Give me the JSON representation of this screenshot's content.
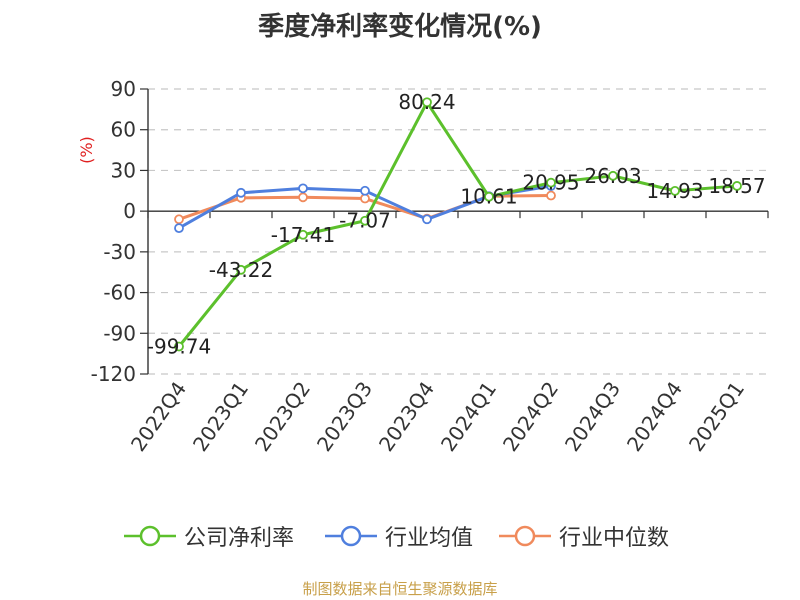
{
  "title": "季度净利率变化情况(%)",
  "source": "制图数据来自恒生聚源数据库",
  "chart_data": {
    "type": "line",
    "title": "季度净利率变化情况(%)",
    "ylabel": "(%)",
    "xlabel": "",
    "categories": [
      "2022Q4",
      "2023Q1",
      "2023Q2",
      "2023Q3",
      "2023Q4",
      "2024Q1",
      "2024Q2",
      "2024Q3",
      "2024Q4",
      "2025Q1"
    ],
    "ylim": [
      -120,
      90
    ],
    "yticks": [
      90,
      60,
      30,
      0,
      -30,
      -60,
      -90,
      -120
    ],
    "grid": true,
    "legend_position": "bottom",
    "series": [
      {
        "name": "公司净利率",
        "color": "#5cc02c",
        "values": [
          -99.74,
          -43.22,
          -17.41,
          -7.07,
          80.24,
          10.61,
          20.95,
          26.03,
          14.93,
          18.57
        ],
        "labels": [
          "-99.74",
          "-43.22",
          "-17.41",
          "-7.07",
          "80.24",
          "10.61",
          "20.95",
          "26.03",
          "14.93",
          "18.57"
        ]
      },
      {
        "name": "行业均值",
        "color": "#4f7fde",
        "values": [
          -12.5,
          13.5,
          16.8,
          15.0,
          -6.0,
          11.0,
          18.5,
          null,
          null,
          null
        ]
      },
      {
        "name": "行业中位数",
        "color": "#f08a5c",
        "values": [
          -6.0,
          9.8,
          10.2,
          9.3,
          -5.5,
          11.0,
          11.5,
          null,
          null,
          null
        ]
      }
    ]
  }
}
